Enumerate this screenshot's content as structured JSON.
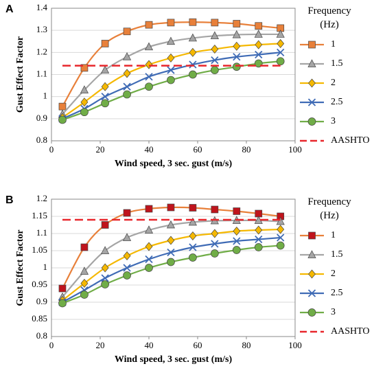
{
  "chart_data": [
    {
      "type": "line",
      "panel_label": "A",
      "xlabel": "Wind speed, 3 sec. gust (m/s)",
      "ylabel": "Gust Effect Factor",
      "legend_title": "Frequency (Hz)",
      "x": [
        4.5,
        13.5,
        22,
        31,
        40,
        49,
        58,
        67,
        76,
        85,
        94
      ],
      "xlim": [
        0,
        100
      ],
      "xticks": [
        0,
        20,
        40,
        60,
        80,
        100
      ],
      "ylim": [
        0.8,
        1.4
      ],
      "yticks": [
        0.8,
        0.9,
        1,
        1.1,
        1.2,
        1.3,
        1.4
      ],
      "grid": true,
      "series": [
        {
          "name": "1",
          "color": "#e8803a",
          "marker": "square",
          "marker_color": "#e8803a",
          "values": [
            0.955,
            1.13,
            1.24,
            1.295,
            1.325,
            1.335,
            1.337,
            1.335,
            1.33,
            1.32,
            1.31
          ]
        },
        {
          "name": "1.5",
          "color": "#a5a5a5",
          "marker": "triangle",
          "marker_color": "#a5a5a5",
          "values": [
            0.92,
            1.03,
            1.12,
            1.18,
            1.225,
            1.25,
            1.265,
            1.275,
            1.28,
            1.282,
            1.282
          ]
        },
        {
          "name": "2",
          "color": "#f5b800",
          "marker": "diamond",
          "marker_color": "#f5b800",
          "values": [
            0.905,
            0.975,
            1.045,
            1.105,
            1.145,
            1.175,
            1.2,
            1.215,
            1.228,
            1.235,
            1.24
          ]
        },
        {
          "name": "2.5",
          "color": "#3f6bb5",
          "marker": "x",
          "marker_color": "#3f6bb5",
          "values": [
            0.9,
            0.945,
            1.0,
            1.045,
            1.09,
            1.12,
            1.145,
            1.165,
            1.18,
            1.19,
            1.2
          ]
        },
        {
          "name": "3",
          "color": "#70ad47",
          "marker": "circle",
          "marker_color": "#70ad47",
          "values": [
            0.895,
            0.93,
            0.97,
            1.01,
            1.045,
            1.075,
            1.1,
            1.12,
            1.135,
            1.15,
            1.16
          ]
        },
        {
          "name": "AASHTO",
          "color": "#e8262b",
          "dashed": true,
          "values": [
            1.14,
            1.14,
            1.14,
            1.14,
            1.14,
            1.14,
            1.14,
            1.14,
            1.14,
            1.14,
            1.14
          ]
        }
      ]
    },
    {
      "type": "line",
      "panel_label": "B",
      "xlabel": "Wind speed, 3 sec. gust (m/s)",
      "ylabel": "Gust Effect Factor",
      "legend_title": "Frequency (Hz)",
      "x": [
        4.5,
        13.5,
        22,
        31,
        40,
        49,
        58,
        67,
        76,
        85,
        94
      ],
      "xlim": [
        0,
        100
      ],
      "xticks": [
        0,
        20,
        40,
        60,
        80,
        100
      ],
      "ylim": [
        0.8,
        1.2
      ],
      "yticks": [
        0.8,
        0.85,
        0.9,
        0.95,
        1,
        1.05,
        1.1,
        1.15,
        1.2
      ],
      "grid": true,
      "series": [
        {
          "name": "1",
          "color": "#e8803a",
          "marker": "square",
          "marker_color": "#c0141c",
          "values": [
            0.94,
            1.06,
            1.125,
            1.16,
            1.172,
            1.176,
            1.175,
            1.17,
            1.165,
            1.158,
            1.15
          ]
        },
        {
          "name": "1.5",
          "color": "#a5a5a5",
          "marker": "triangle",
          "marker_color": "#a5a5a5",
          "values": [
            0.915,
            0.99,
            1.05,
            1.088,
            1.11,
            1.125,
            1.133,
            1.137,
            1.138,
            1.138,
            1.135
          ]
        },
        {
          "name": "2",
          "color": "#f5b800",
          "marker": "diamond",
          "marker_color": "#f5b800",
          "values": [
            0.905,
            0.955,
            1.0,
            1.035,
            1.062,
            1.08,
            1.093,
            1.1,
            1.107,
            1.11,
            1.112
          ]
        },
        {
          "name": "2.5",
          "color": "#3f6bb5",
          "marker": "x",
          "marker_color": "#3f6bb5",
          "values": [
            0.9,
            0.935,
            0.97,
            1.0,
            1.025,
            1.045,
            1.06,
            1.07,
            1.078,
            1.083,
            1.088
          ]
        },
        {
          "name": "3",
          "color": "#70ad47",
          "marker": "circle",
          "marker_color": "#70ad47",
          "values": [
            0.897,
            0.922,
            0.952,
            0.978,
            1.0,
            1.017,
            1.03,
            1.042,
            1.052,
            1.06,
            1.065
          ]
        },
        {
          "name": "AASHTO",
          "color": "#e8262b",
          "dashed": true,
          "values": [
            1.14,
            1.14,
            1.14,
            1.14,
            1.14,
            1.14,
            1.14,
            1.14,
            1.14,
            1.14,
            1.14
          ]
        }
      ]
    }
  ]
}
